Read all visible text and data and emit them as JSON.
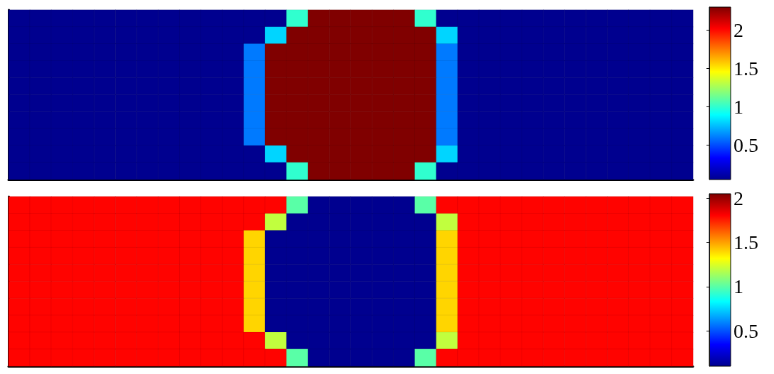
{
  "chart_data": [
    {
      "type": "heatmap",
      "categories": [
        null,
        null,
        null,
        null,
        null,
        null,
        null,
        null,
        null,
        null,
        null,
        null,
        null,
        null,
        null,
        null,
        null,
        null,
        null,
        null,
        null,
        null,
        null,
        null,
        null,
        null,
        null,
        null,
        null,
        null,
        null,
        null
      ],
      "y_categories": [
        null,
        null,
        null,
        null,
        null,
        null,
        null,
        null,
        null,
        null
      ],
      "clim": [
        0.05,
        2.3
      ],
      "cticks": [
        0.5,
        1,
        1.5,
        2
      ],
      "cells": [
        [
          0.05,
          0.05,
          0.05,
          0.05,
          0.05,
          0.05,
          0.05,
          0.05,
          0.05,
          0.05,
          0.05,
          0.05,
          0.05,
          1.0,
          2.3,
          2.3,
          2.3,
          2.3,
          2.3,
          1.0,
          0.05,
          0.05,
          0.05,
          0.05,
          0.05,
          0.05,
          0.05,
          0.05,
          0.05,
          0.05,
          0.05,
          0.05
        ],
        [
          0.05,
          0.05,
          0.05,
          0.05,
          0.05,
          0.05,
          0.05,
          0.05,
          0.05,
          0.05,
          0.05,
          0.05,
          0.8,
          2.3,
          2.3,
          2.3,
          2.3,
          2.3,
          2.3,
          2.3,
          0.8,
          0.05,
          0.05,
          0.05,
          0.05,
          0.05,
          0.05,
          0.05,
          0.05,
          0.05,
          0.05,
          0.05
        ],
        [
          0.05,
          0.05,
          0.05,
          0.05,
          0.05,
          0.05,
          0.05,
          0.05,
          0.05,
          0.05,
          0.05,
          0.6,
          2.3,
          2.3,
          2.3,
          2.3,
          2.3,
          2.3,
          2.3,
          2.3,
          0.6,
          0.05,
          0.05,
          0.05,
          0.05,
          0.05,
          0.05,
          0.05,
          0.05,
          0.05,
          0.05,
          0.05
        ],
        [
          0.05,
          0.05,
          0.05,
          0.05,
          0.05,
          0.05,
          0.05,
          0.05,
          0.05,
          0.05,
          0.05,
          0.6,
          2.3,
          2.3,
          2.3,
          2.3,
          2.3,
          2.3,
          2.3,
          2.3,
          0.6,
          0.05,
          0.05,
          0.05,
          0.05,
          0.05,
          0.05,
          0.05,
          0.05,
          0.05,
          0.05,
          0.05
        ],
        [
          0.05,
          0.05,
          0.05,
          0.05,
          0.05,
          0.05,
          0.05,
          0.05,
          0.05,
          0.05,
          0.05,
          0.6,
          2.3,
          2.3,
          2.3,
          2.3,
          2.3,
          2.3,
          2.3,
          2.3,
          0.6,
          0.05,
          0.05,
          0.05,
          0.05,
          0.05,
          0.05,
          0.05,
          0.05,
          0.05,
          0.05,
          0.05
        ],
        [
          0.05,
          0.05,
          0.05,
          0.05,
          0.05,
          0.05,
          0.05,
          0.05,
          0.05,
          0.05,
          0.05,
          0.6,
          2.3,
          2.3,
          2.3,
          2.3,
          2.3,
          2.3,
          2.3,
          2.3,
          0.6,
          0.05,
          0.05,
          0.05,
          0.05,
          0.05,
          0.05,
          0.05,
          0.05,
          0.05,
          0.05,
          0.05
        ],
        [
          0.05,
          0.05,
          0.05,
          0.05,
          0.05,
          0.05,
          0.05,
          0.05,
          0.05,
          0.05,
          0.05,
          0.6,
          2.3,
          2.3,
          2.3,
          2.3,
          2.3,
          2.3,
          2.3,
          2.3,
          0.6,
          0.05,
          0.05,
          0.05,
          0.05,
          0.05,
          0.05,
          0.05,
          0.05,
          0.05,
          0.05,
          0.05
        ],
        [
          0.05,
          0.05,
          0.05,
          0.05,
          0.05,
          0.05,
          0.05,
          0.05,
          0.05,
          0.05,
          0.05,
          0.6,
          2.3,
          2.3,
          2.3,
          2.3,
          2.3,
          2.3,
          2.3,
          2.3,
          0.6,
          0.05,
          0.05,
          0.05,
          0.05,
          0.05,
          0.05,
          0.05,
          0.05,
          0.05,
          0.05,
          0.05
        ],
        [
          0.05,
          0.05,
          0.05,
          0.05,
          0.05,
          0.05,
          0.05,
          0.05,
          0.05,
          0.05,
          0.05,
          0.05,
          0.8,
          2.3,
          2.3,
          2.3,
          2.3,
          2.3,
          2.3,
          2.3,
          0.8,
          0.05,
          0.05,
          0.05,
          0.05,
          0.05,
          0.05,
          0.05,
          0.05,
          0.05,
          0.05,
          0.05
        ],
        [
          0.05,
          0.05,
          0.05,
          0.05,
          0.05,
          0.05,
          0.05,
          0.05,
          0.05,
          0.05,
          0.05,
          0.05,
          0.05,
          1.0,
          2.3,
          2.3,
          2.3,
          2.3,
          2.3,
          1.0,
          0.05,
          0.05,
          0.05,
          0.05,
          0.05,
          0.05,
          0.05,
          0.05,
          0.05,
          0.05,
          0.05,
          0.05
        ]
      ]
    },
    {
      "type": "heatmap",
      "categories": [
        null,
        null,
        null,
        null,
        null,
        null,
        null,
        null,
        null,
        null,
        null,
        null,
        null,
        null,
        null,
        null,
        null,
        null,
        null,
        null,
        null,
        null,
        null,
        null,
        null,
        null,
        null,
        null,
        null,
        null,
        null,
        null
      ],
      "y_categories": [
        null,
        null,
        null,
        null,
        null,
        null,
        null,
        null,
        null,
        null
      ],
      "clim": [
        0.1,
        2.05
      ],
      "cticks": [
        0.5,
        1,
        1.5,
        2
      ],
      "cells": [
        [
          1.8,
          1.8,
          1.8,
          1.8,
          1.8,
          1.8,
          1.8,
          1.8,
          1.8,
          1.8,
          1.8,
          1.8,
          1.8,
          1.0,
          0.1,
          0.1,
          0.1,
          0.1,
          0.1,
          1.0,
          1.8,
          1.8,
          1.8,
          1.8,
          1.8,
          1.8,
          1.8,
          1.8,
          1.8,
          1.8,
          1.8,
          1.8
        ],
        [
          1.8,
          1.8,
          1.8,
          1.8,
          1.8,
          1.8,
          1.8,
          1.8,
          1.8,
          1.8,
          1.8,
          1.8,
          1.2,
          0.1,
          0.1,
          0.1,
          0.1,
          0.1,
          0.1,
          0.1,
          1.2,
          1.8,
          1.8,
          1.8,
          1.8,
          1.8,
          1.8,
          1.8,
          1.8,
          1.8,
          1.8,
          1.8
        ],
        [
          1.8,
          1.8,
          1.8,
          1.8,
          1.8,
          1.8,
          1.8,
          1.8,
          1.8,
          1.8,
          1.8,
          1.4,
          0.1,
          0.1,
          0.1,
          0.1,
          0.1,
          0.1,
          0.1,
          0.1,
          1.4,
          1.8,
          1.8,
          1.8,
          1.8,
          1.8,
          1.8,
          1.8,
          1.8,
          1.8,
          1.8,
          1.8
        ],
        [
          1.8,
          1.8,
          1.8,
          1.8,
          1.8,
          1.8,
          1.8,
          1.8,
          1.8,
          1.8,
          1.8,
          1.4,
          0.1,
          0.1,
          0.1,
          0.1,
          0.1,
          0.1,
          0.1,
          0.1,
          1.4,
          1.8,
          1.8,
          1.8,
          1.8,
          1.8,
          1.8,
          1.8,
          1.8,
          1.8,
          1.8,
          1.8
        ],
        [
          1.8,
          1.8,
          1.8,
          1.8,
          1.8,
          1.8,
          1.8,
          1.8,
          1.8,
          1.8,
          1.8,
          1.4,
          0.1,
          0.1,
          0.1,
          0.1,
          0.1,
          0.1,
          0.1,
          0.1,
          1.4,
          1.8,
          1.8,
          1.8,
          1.8,
          1.8,
          1.8,
          1.8,
          1.8,
          1.8,
          1.8,
          1.8
        ],
        [
          1.8,
          1.8,
          1.8,
          1.8,
          1.8,
          1.8,
          1.8,
          1.8,
          1.8,
          1.8,
          1.8,
          1.4,
          0.1,
          0.1,
          0.1,
          0.1,
          0.1,
          0.1,
          0.1,
          0.1,
          1.4,
          1.8,
          1.8,
          1.8,
          1.8,
          1.8,
          1.8,
          1.8,
          1.8,
          1.8,
          1.8,
          1.8
        ],
        [
          1.8,
          1.8,
          1.8,
          1.8,
          1.8,
          1.8,
          1.8,
          1.8,
          1.8,
          1.8,
          1.8,
          1.4,
          0.1,
          0.1,
          0.1,
          0.1,
          0.1,
          0.1,
          0.1,
          0.1,
          1.4,
          1.8,
          1.8,
          1.8,
          1.8,
          1.8,
          1.8,
          1.8,
          1.8,
          1.8,
          1.8,
          1.8
        ],
        [
          1.8,
          1.8,
          1.8,
          1.8,
          1.8,
          1.8,
          1.8,
          1.8,
          1.8,
          1.8,
          1.8,
          1.4,
          0.1,
          0.1,
          0.1,
          0.1,
          0.1,
          0.1,
          0.1,
          0.1,
          1.4,
          1.8,
          1.8,
          1.8,
          1.8,
          1.8,
          1.8,
          1.8,
          1.8,
          1.8,
          1.8,
          1.8
        ],
        [
          1.8,
          1.8,
          1.8,
          1.8,
          1.8,
          1.8,
          1.8,
          1.8,
          1.8,
          1.8,
          1.8,
          1.8,
          1.2,
          0.1,
          0.1,
          0.1,
          0.1,
          0.1,
          0.1,
          0.1,
          1.2,
          1.8,
          1.8,
          1.8,
          1.8,
          1.8,
          1.8,
          1.8,
          1.8,
          1.8,
          1.8,
          1.8
        ],
        [
          1.8,
          1.8,
          1.8,
          1.8,
          1.8,
          1.8,
          1.8,
          1.8,
          1.8,
          1.8,
          1.8,
          1.8,
          1.8,
          1.0,
          0.1,
          0.1,
          0.1,
          0.1,
          0.1,
          1.0,
          1.8,
          1.8,
          1.8,
          1.8,
          1.8,
          1.8,
          1.8,
          1.8,
          1.8,
          1.8,
          1.8,
          1.8
        ]
      ]
    }
  ]
}
